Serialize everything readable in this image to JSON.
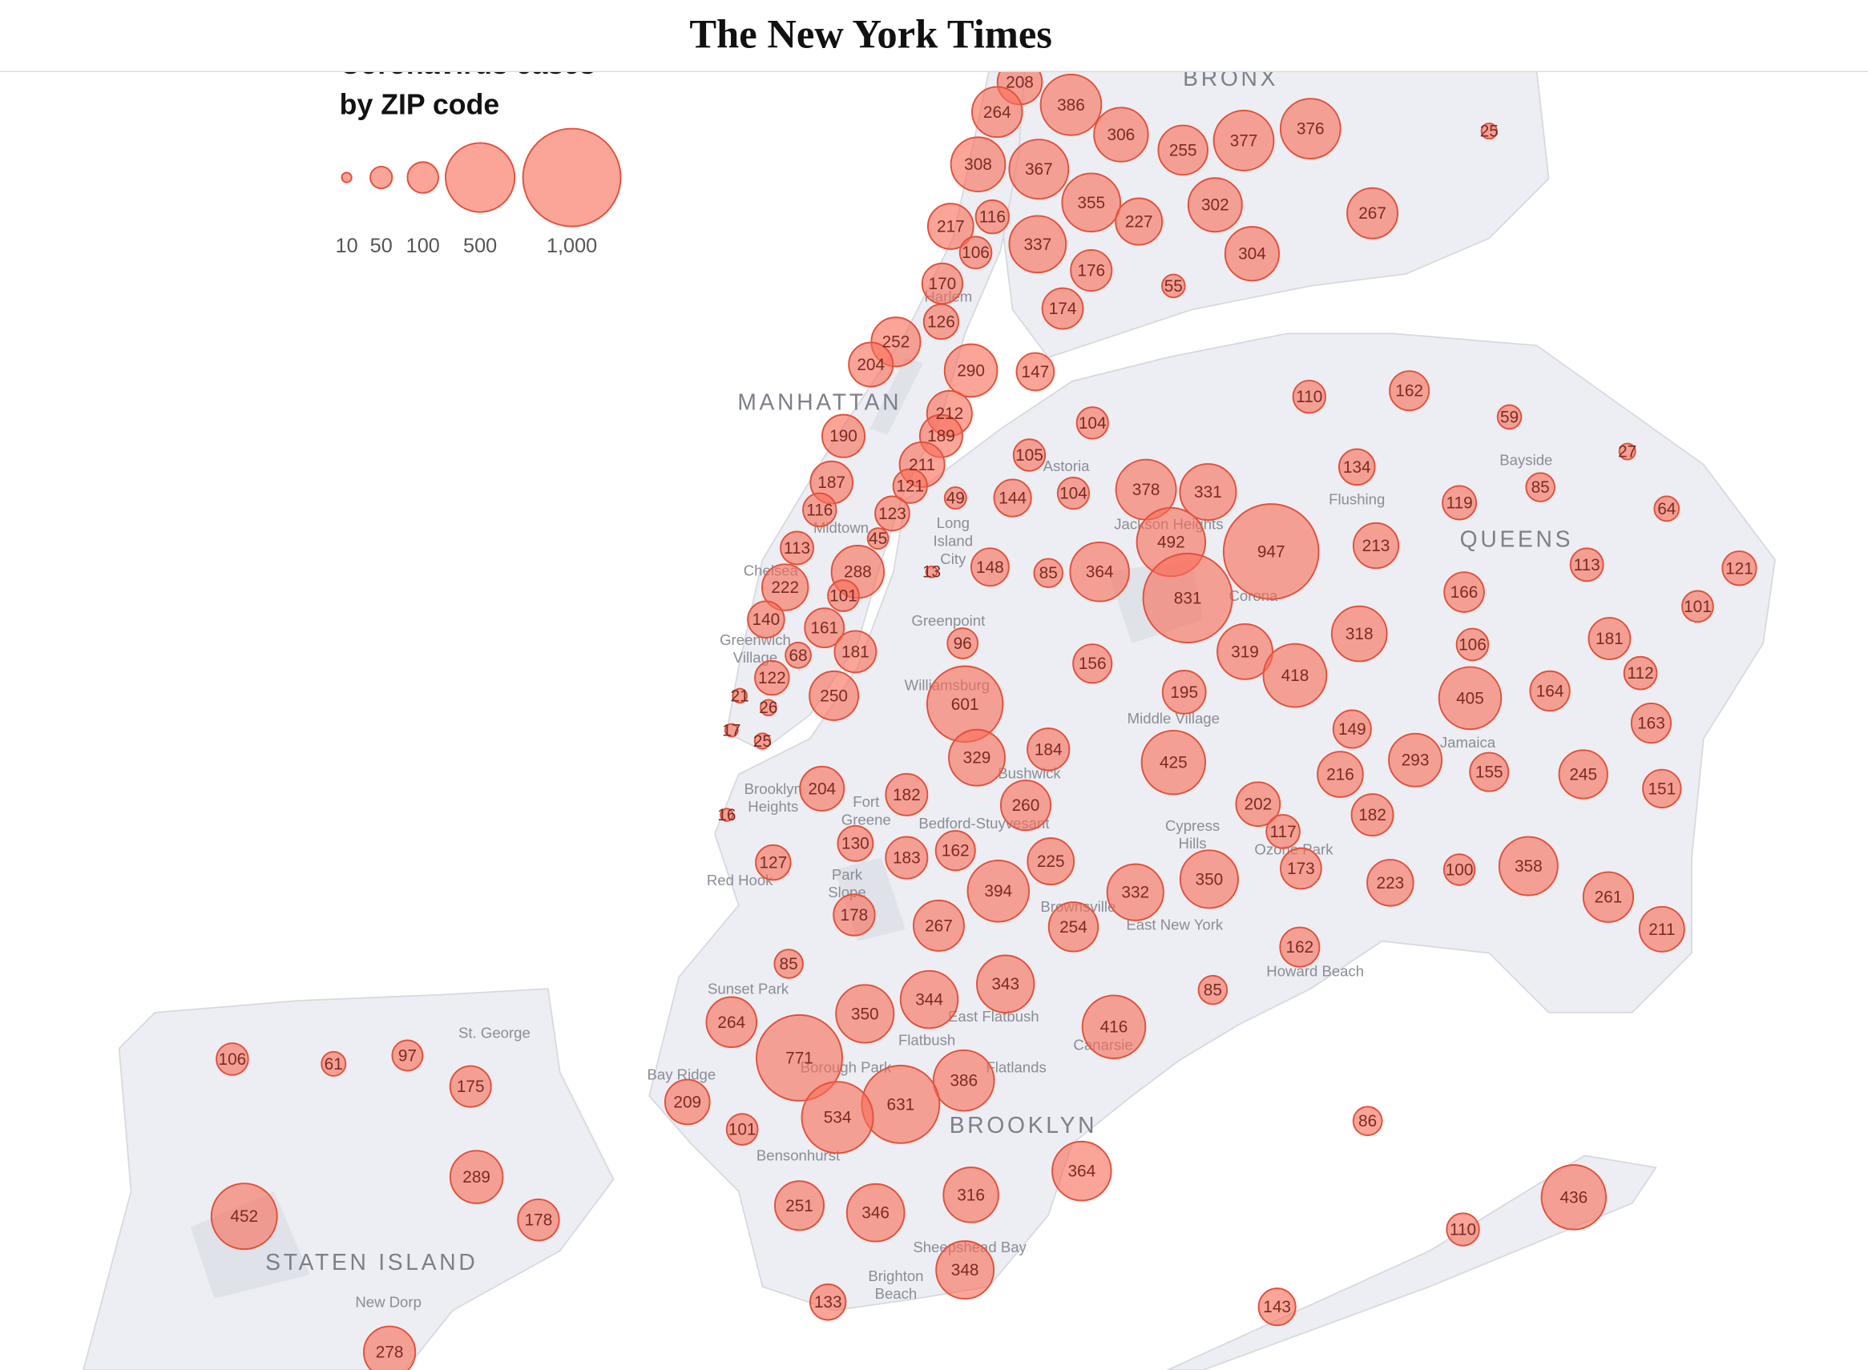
{
  "header": {
    "logo": "The New York Times"
  },
  "legend": {
    "title": [
      "Coronavirus cases",
      "by ZIP code"
    ],
    "sizes": [
      10,
      50,
      100,
      500,
      {
        "value": 1000,
        "label": "1,000"
      }
    ]
  },
  "boroughs": [
    "BRONX",
    "MANHATTAN",
    "QUEENS",
    "BROOKLYN",
    "STATEN ISLAND"
  ],
  "places": [
    [
      "Harlem"
    ],
    [
      "Astoria"
    ],
    [
      "Flushing"
    ],
    [
      "Bayside"
    ],
    [
      "Midtown"
    ],
    [
      "Long",
      "Island",
      "City"
    ],
    [
      "Jackson Heights"
    ],
    [
      "Corona"
    ],
    [
      "Chelsea"
    ],
    [
      "Greenpoint"
    ],
    [
      "Greenwich",
      "Village"
    ],
    [
      "Williamsburg"
    ],
    [
      "Middle Village"
    ],
    [
      "Jamaica"
    ],
    [
      "Brooklyn",
      "Heights"
    ],
    [
      "Fort",
      "Greene"
    ],
    [
      "Bushwick"
    ],
    [
      "Bedford-Stuyvesant"
    ],
    [
      "Cypress",
      "Hills"
    ],
    [
      "Ozone Park"
    ],
    [
      "Red Hook"
    ],
    [
      "Park",
      "Slope"
    ],
    [
      "Brownsville"
    ],
    [
      "East New York"
    ],
    [
      "Howard Beach"
    ],
    [
      "Sunset Park"
    ],
    [
      "East Flatbush"
    ],
    [
      "Flatbush"
    ],
    [
      "Canarsie"
    ],
    [
      "Flatlands"
    ],
    [
      "Borough Park"
    ],
    [
      "Bay Ridge"
    ],
    [
      "Bensonhurst"
    ],
    [
      "Sheepshead Bay"
    ],
    [
      "Brighton",
      "Beach"
    ],
    [
      "St. George"
    ],
    [
      "New Dorp"
    ]
  ],
  "zips": [
    208,
    386,
    264,
    306,
    255,
    377,
    376,
    25,
    308,
    367,
    355,
    302,
    227,
    267,
    217,
    116,
    337,
    304,
    106,
    176,
    55,
    170,
    174,
    126,
    252,
    204,
    290,
    147,
    110,
    162,
    59,
    212,
    189,
    190,
    104,
    211,
    105,
    134,
    27,
    187,
    121,
    49,
    144,
    104,
    378,
    331,
    85,
    119,
    64,
    116,
    123,
    45,
    492,
    947,
    213,
    113,
    288,
    148,
    85,
    364,
    13,
    113,
    121,
    222,
    101,
    831,
    166,
    101,
    140,
    161,
    318,
    181,
    96,
    181,
    68,
    319,
    106,
    156,
    418,
    112,
    122,
    250,
    601,
    195,
    405,
    164,
    21,
    26,
    163,
    17,
    25,
    149,
    329,
    184,
    425,
    293,
    216,
    155,
    245,
    151,
    204,
    182,
    260,
    16,
    202,
    182,
    117,
    130,
    127,
    183,
    162,
    225,
    173,
    350,
    223,
    100,
    358,
    394,
    332,
    261,
    178,
    267,
    254,
    211,
    85,
    162,
    343,
    344,
    350,
    85,
    416,
    264,
    771,
    386,
    631,
    534,
    209,
    101,
    86,
    364,
    436,
    251,
    346,
    316,
    110,
    348,
    133,
    143,
    106,
    61,
    97,
    175,
    289,
    452,
    178,
    278
  ]
}
